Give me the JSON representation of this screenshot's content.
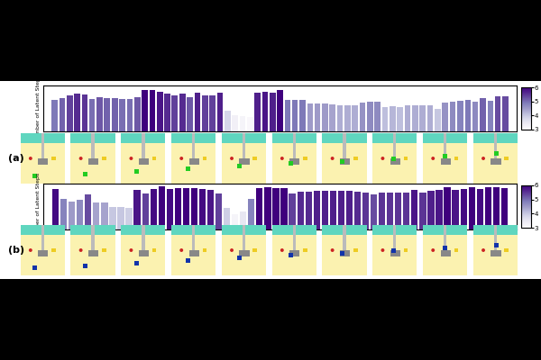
{
  "chart_data": [
    {
      "type": "bar",
      "panel_label": "(a)",
      "y_label": "Number of Latent Steps",
      "values": [
        4.9,
        5.1,
        5.4,
        5.6,
        5.5,
        5.0,
        5.2,
        5.1,
        5.1,
        5.0,
        5.0,
        5.2,
        6.0,
        6.0,
        5.8,
        5.6,
        5.4,
        5.6,
        5.2,
        5.7,
        5.4,
        5.4,
        5.7,
        3.8,
        3.3,
        3.2,
        3.1,
        5.7,
        5.8,
        5.7,
        6.0,
        4.9,
        4.9,
        4.9,
        4.5,
        4.5,
        4.5,
        4.4,
        4.3,
        4.3,
        4.3,
        4.6,
        4.7,
        4.7,
        4.1,
        4.2,
        4.1,
        4.3,
        4.3,
        4.3,
        4.3,
        4.0,
        4.6,
        4.7,
        4.8,
        4.9,
        4.7,
        5.1,
        4.8,
        5.3,
        5.3
      ],
      "ylim": [
        1.5,
        6.5
      ],
      "tick_labels": false,
      "colorbar": {
        "range": [
          3,
          6
        ],
        "ticks": [
          3,
          4,
          5,
          6
        ]
      }
    },
    {
      "type": "bar",
      "panel_label": "(b)",
      "y_label": "Number of Latent Steps",
      "values": [
        5.9,
        4.8,
        4.5,
        4.7,
        5.3,
        4.4,
        4.4,
        4.0,
        4.0,
        3.9,
        5.8,
        5.4,
        5.9,
        6.2,
        5.9,
        6.0,
        6.0,
        6.0,
        5.9,
        5.8,
        5.4,
        3.9,
        3.2,
        3.5,
        4.8,
        6.0,
        6.1,
        6.0,
        6.0,
        5.4,
        5.6,
        5.6,
        5.7,
        5.7,
        5.7,
        5.7,
        5.7,
        5.6,
        5.5,
        5.3,
        5.5,
        5.5,
        5.5,
        5.5,
        5.8,
        5.5,
        5.7,
        5.8,
        6.1,
        5.8,
        5.9,
        6.1,
        5.9,
        6.1,
        6.1,
        6.0
      ],
      "ylim": [
        1.5,
        6.5
      ],
      "tick_labels": false,
      "colorbar": {
        "range": [
          3,
          6
        ],
        "ticks": [
          3,
          4,
          5,
          6
        ]
      }
    }
  ]
}
